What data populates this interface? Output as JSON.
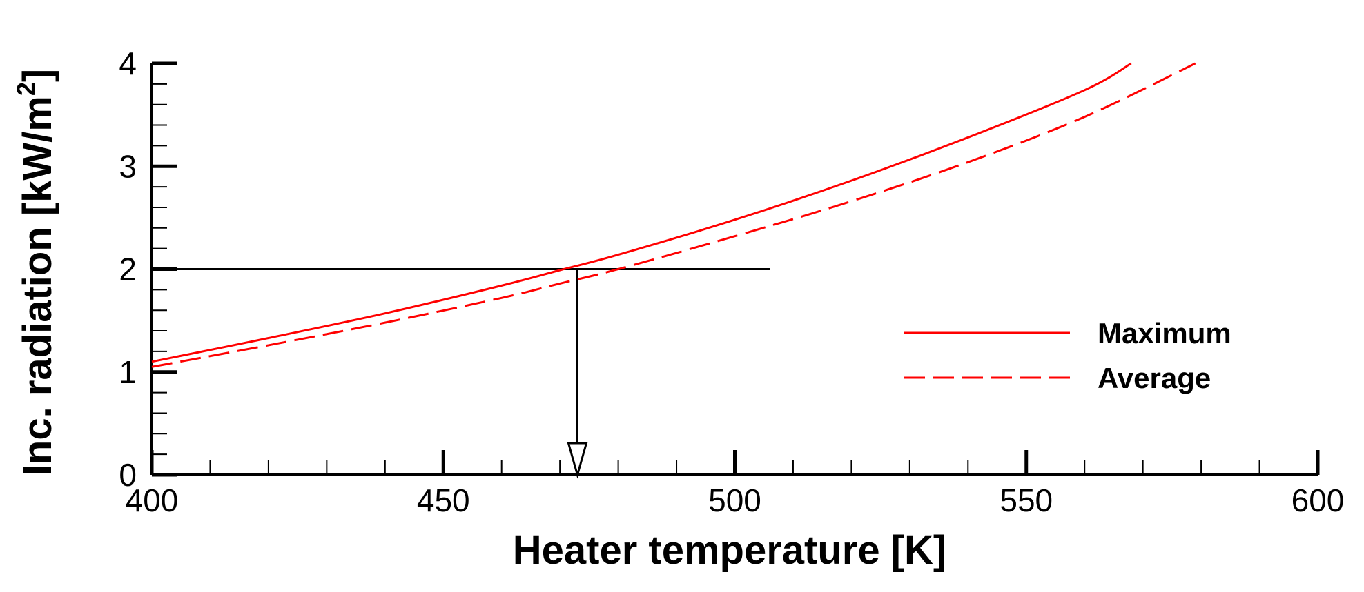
{
  "chart_data": {
    "type": "line",
    "title": "",
    "xlabel": "Heater temperature [K]",
    "ylabel_main": "Inc. radiation [kW/m",
    "ylabel_sup": "2",
    "ylabel_close": "]",
    "xlim": [
      400,
      600
    ],
    "ylim": [
      0,
      4
    ],
    "x_major_ticks": [
      400,
      450,
      500,
      550,
      600
    ],
    "x_tick_labels": [
      "400",
      "450",
      "500",
      "550",
      "600"
    ],
    "x_minor_step": 10,
    "y_major_ticks": [
      0,
      1,
      2,
      3,
      4
    ],
    "y_tick_labels": [
      "0",
      "1",
      "2",
      "3",
      "4"
    ],
    "y_minor_step": 0.2,
    "grid": false,
    "legend_position": "right",
    "colors": {
      "series": "#ff0000",
      "axis": "#000000",
      "annotation": "#000000"
    },
    "series": [
      {
        "name": "Maximum",
        "style": "solid",
        "x": [
          400,
          420,
          440,
          460,
          470,
          480,
          500,
          520,
          540,
          560,
          568
        ],
        "y": [
          1.1,
          1.33,
          1.57,
          1.84,
          1.99,
          2.14,
          2.48,
          2.86,
          3.28,
          3.74,
          4.0
        ]
      },
      {
        "name": "Average",
        "style": "dashed",
        "x": [
          400,
          420,
          440,
          460,
          470,
          480,
          500,
          520,
          540,
          560,
          579
        ],
        "y": [
          1.05,
          1.26,
          1.48,
          1.72,
          1.86,
          2.0,
          2.32,
          2.66,
          3.04,
          3.48,
          4.0
        ]
      }
    ],
    "annotation": {
      "horizontal_line": {
        "y": 2,
        "x_from": 400,
        "x_to": 506
      },
      "vertical_arrow": {
        "x": 473,
        "y_from": 2,
        "y_to": 0
      }
    }
  }
}
